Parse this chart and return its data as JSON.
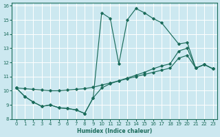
{
  "xlabel": "Humidex (Indice chaleur)",
  "bg_color": "#cce8f0",
  "grid_color": "#ffffff",
  "line_color": "#1a6b5a",
  "xlim": [
    -0.5,
    23.5
  ],
  "ylim": [
    8,
    16.2
  ],
  "xticks": [
    0,
    1,
    2,
    3,
    4,
    5,
    6,
    7,
    8,
    9,
    10,
    11,
    12,
    13,
    14,
    15,
    16,
    17,
    18,
    19,
    20,
    21,
    22,
    23
  ],
  "yticks": [
    8,
    9,
    10,
    11,
    12,
    13,
    14,
    15,
    16
  ],
  "curve_top_x": [
    0,
    1,
    2,
    3,
    4,
    5,
    6,
    7,
    8,
    9,
    10,
    11,
    12,
    13,
    14,
    15,
    16,
    17,
    19,
    20,
    21,
    22,
    23
  ],
  "curve_top_y": [
    10.2,
    9.6,
    9.2,
    8.9,
    9.0,
    8.8,
    8.75,
    8.65,
    8.4,
    9.5,
    15.5,
    15.1,
    11.9,
    15.0,
    15.8,
    15.5,
    15.1,
    14.8,
    13.3,
    13.4,
    11.6,
    11.85,
    11.55
  ],
  "curve_mid_x": [
    0,
    1,
    2,
    3,
    4,
    5,
    6,
    7,
    8,
    9,
    10,
    11,
    12,
    13,
    14,
    15,
    16,
    17,
    18,
    19,
    20,
    21,
    22,
    23
  ],
  "curve_mid_y": [
    10.2,
    9.6,
    9.2,
    8.9,
    9.0,
    8.8,
    8.75,
    8.65,
    8.4,
    9.5,
    10.2,
    10.5,
    10.7,
    10.9,
    11.1,
    11.3,
    11.55,
    11.75,
    11.9,
    12.8,
    13.0,
    11.6,
    11.85,
    11.55
  ],
  "curve_bot_x": [
    0,
    1,
    2,
    3,
    4,
    5,
    6,
    7,
    8,
    9,
    10,
    11,
    12,
    13,
    14,
    15,
    16,
    17,
    18,
    19,
    20,
    21,
    22,
    23
  ],
  "curve_bot_y": [
    10.2,
    10.15,
    10.1,
    10.05,
    10.0,
    10.0,
    10.05,
    10.1,
    10.15,
    10.25,
    10.4,
    10.55,
    10.7,
    10.85,
    11.0,
    11.15,
    11.3,
    11.45,
    11.6,
    12.3,
    12.5,
    11.6,
    11.85,
    11.55
  ]
}
